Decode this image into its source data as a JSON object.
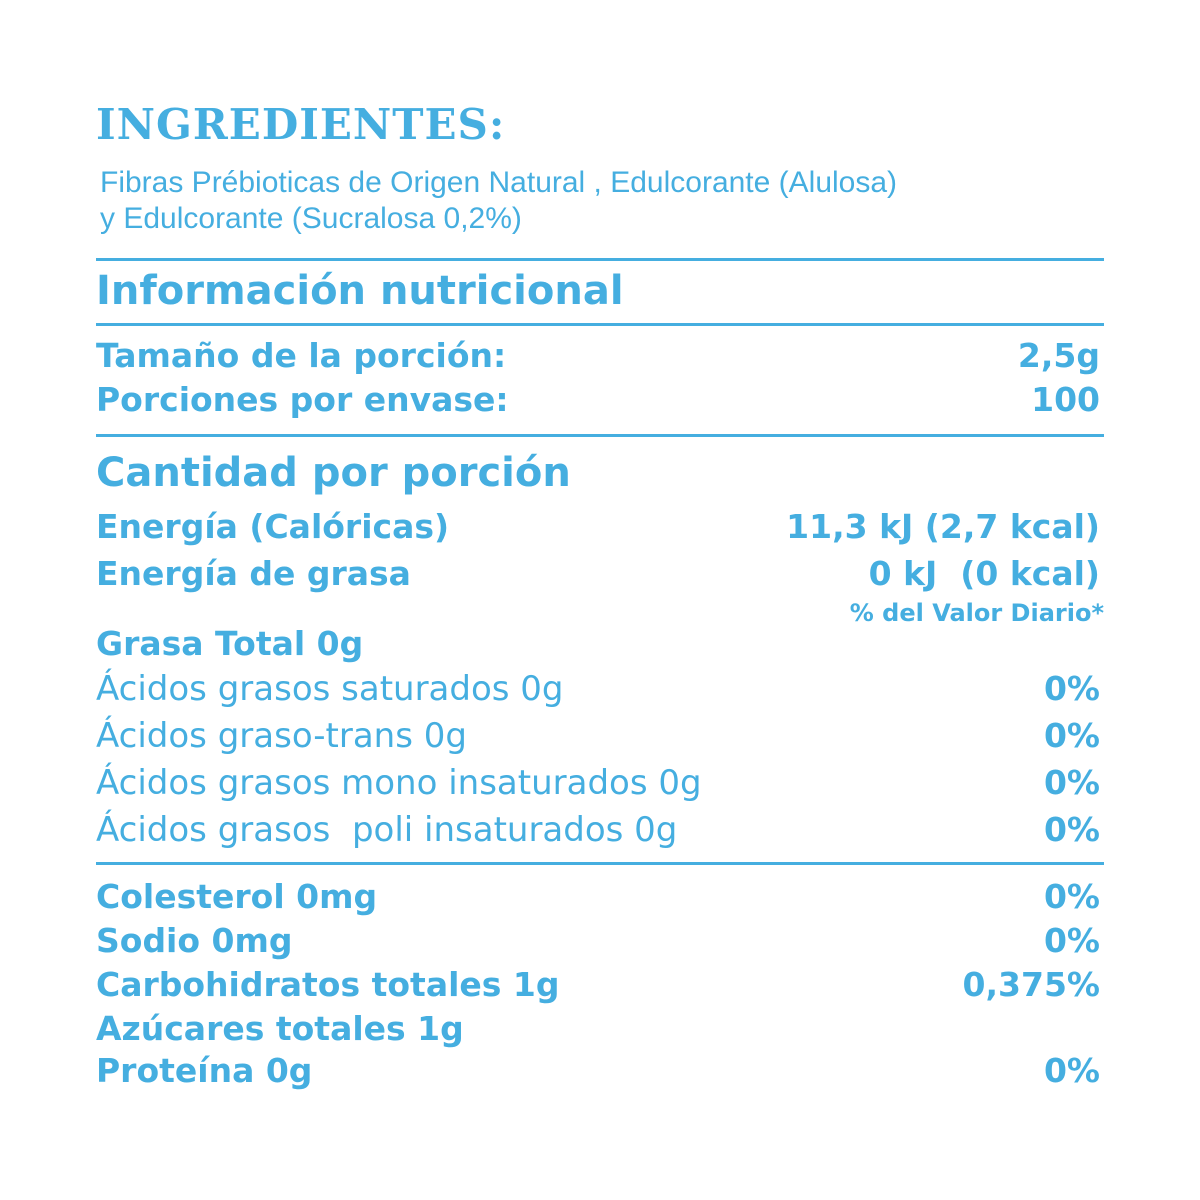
{
  "ingredients": {
    "title": "INGREDIENTES:",
    "line1": "Fibras Prébioticas de Origen Natural , Edulcorante (Alulosa)",
    "line2": "y Edulcorante (Sucralosa 0,2%)"
  },
  "section_title": "Información nutricional",
  "serving": [
    {
      "label": "Tamaño de la porción:",
      "value": "2,5g"
    },
    {
      "label": "Porciones por envase:",
      "value": "100"
    }
  ],
  "amount_title": "Cantidad por porción",
  "energy": [
    {
      "label": "Energía (Calóricas)",
      "value": "11,3 kJ (2,7 kcal)"
    },
    {
      "label": "Energía de grasa",
      "value": "0 kJ  (0 kcal)"
    }
  ],
  "dv_header": "% del Valor Diario*",
  "fat": {
    "label": "Grasa Total 0g",
    "items": [
      {
        "label": "Ácidos grasos saturados 0g",
        "value": "0%"
      },
      {
        "label": "Ácidos graso-trans 0g",
        "value": "0%"
      },
      {
        "label": "Ácidos grasos mono insaturados 0g",
        "value": "0%"
      },
      {
        "label": "Ácidos grasos  poli insaturados 0g",
        "value": "0%"
      }
    ]
  },
  "nutrients": [
    {
      "label": "Colesterol 0mg",
      "value": "0%"
    },
    {
      "label": "Sodio 0mg",
      "value": "0%"
    },
    {
      "label": "Carbohidratos totales 1g",
      "value": "0,375%"
    },
    {
      "label": "Azúcares totales 1g",
      "value": ""
    },
    {
      "label": "Proteína 0g",
      "value": "0%"
    }
  ],
  "colors": {
    "text": "#45aee0",
    "background": "#ffffff"
  }
}
